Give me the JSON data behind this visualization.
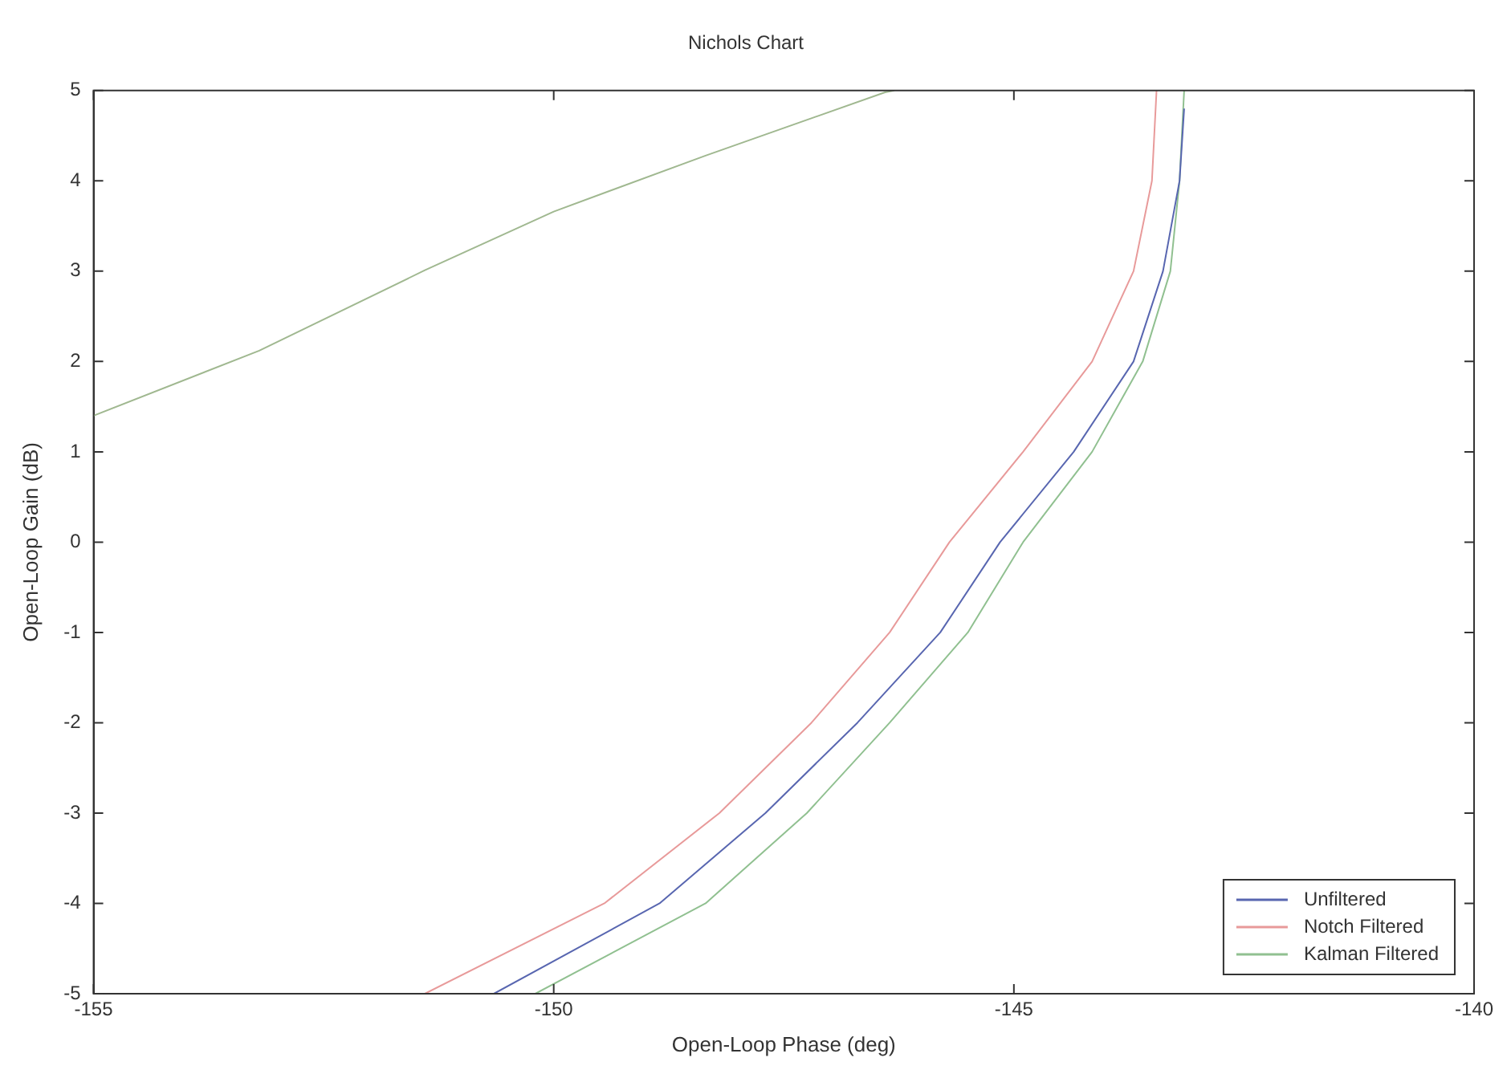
{
  "chart_data": {
    "type": "line",
    "title": "Nichols Chart",
    "xlabel": "Open-Loop Phase (deg)",
    "ylabel": "Open-Loop Gain (dB)",
    "xlim": [
      -155,
      -140
    ],
    "xticks": [
      -155,
      -150,
      -145,
      -140
    ],
    "ylim": [
      -5,
      5
    ],
    "yticks": [
      -5,
      -4,
      -3,
      -2,
      -1,
      0,
      1,
      2,
      3,
      4,
      5
    ],
    "grid": false,
    "legend": "bottom right",
    "marker": "none",
    "line_style": "solid",
    "series": [
      {
        "name": "Unfiltered",
        "color": "#5866b0",
        "x": [
          -150.65,
          -148.85,
          -147.7,
          -146.7,
          -145.8,
          -145.15,
          -144.35,
          -143.7,
          -143.38,
          -143.2,
          -143.15
        ],
        "values": [
          -5,
          -4,
          -3,
          -2,
          -1,
          0,
          1,
          2,
          3,
          4,
          4.8
        ]
      },
      {
        "name": "Notch Filtered",
        "color": "#e89a9a",
        "x": [
          -151.4,
          -149.45,
          -148.2,
          -147.2,
          -146.35,
          -145.7,
          -144.9,
          -144.15,
          -143.7,
          -143.5,
          -143.45
        ],
        "values": [
          -5,
          -4,
          -3,
          -2,
          -1,
          0,
          1,
          2,
          3,
          4,
          5
        ]
      },
      {
        "name": "Kalman Filtered",
        "color": "#90c090",
        "x": [
          -150.2,
          -148.35,
          -147.25,
          -146.35,
          -145.5,
          -144.9,
          -144.15,
          -143.6,
          -143.3,
          -143.2,
          -143.15
        ],
        "values": [
          -5,
          -4,
          -3,
          -2,
          -1,
          0,
          1,
          2,
          3,
          4,
          5
        ]
      },
      {
        "color": "#a0b890",
        "x": [
          -155,
          -153.2,
          -151.4,
          -150,
          -148.35,
          -146.4,
          -146.3
        ],
        "values": [
          1.4,
          2.12,
          3.01,
          3.66,
          4.28,
          4.98,
          5
        ]
      }
    ]
  }
}
